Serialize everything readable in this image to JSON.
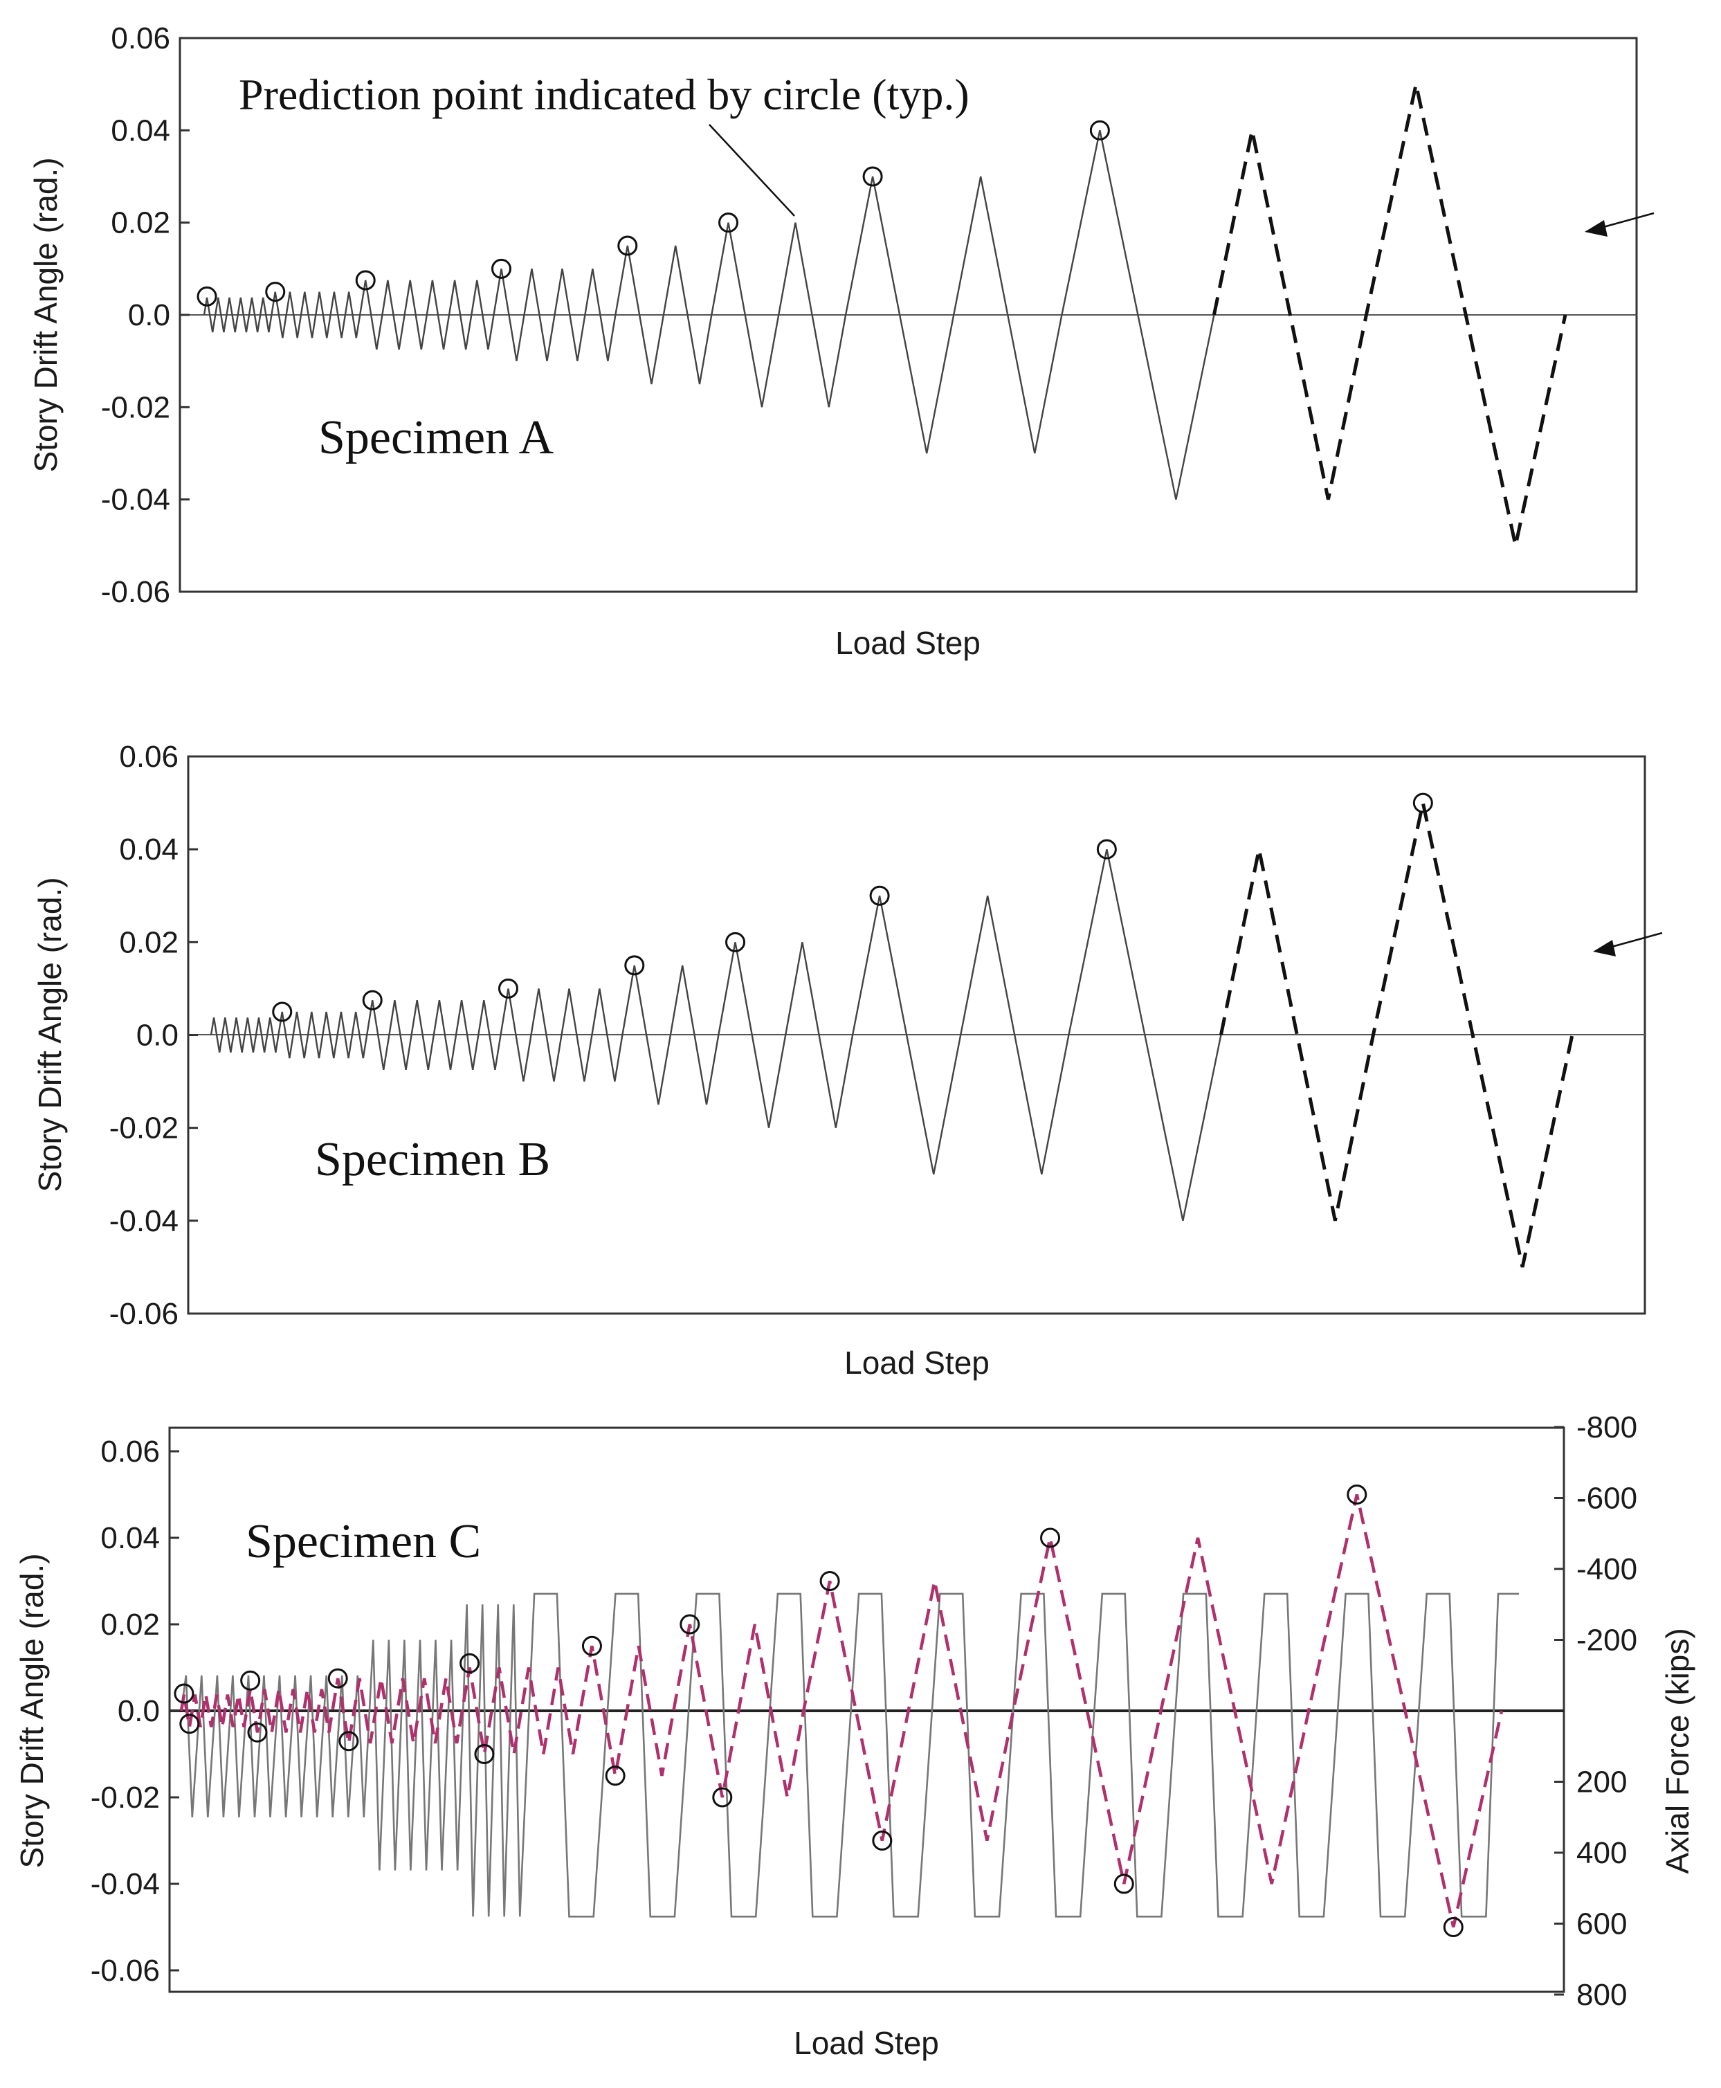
{
  "annotation": "Prediction point indicated by circle (typ.)",
  "chart_data": [
    {
      "type": "line",
      "title": "Specimen A",
      "xlabel": "Load Step",
      "ylabel": "Story Drift Angle (rad.)",
      "ylim": [
        -0.06,
        0.06
      ],
      "yticks": [
        "0.06",
        "0.04",
        "0.02",
        "0.0",
        "-0.02",
        "-0.04",
        "-0.06"
      ],
      "grid": false,
      "series": [
        {
          "style": "solid",
          "cycles": [
            {
              "amplitude": 0.00375,
              "count": 6
            },
            {
              "amplitude": 0.005,
              "count": 6
            },
            {
              "amplitude": 0.0075,
              "count": 6
            },
            {
              "amplitude": 0.01,
              "count": 4
            },
            {
              "amplitude": 0.015,
              "count": 2
            },
            {
              "amplitude": 0.02,
              "count": 2
            },
            {
              "amplitude": 0.03,
              "count": 2
            },
            {
              "amplitude": 0.04,
              "count": 1
            }
          ]
        },
        {
          "style": "dashed",
          "cycles": [
            {
              "amplitude": 0.04,
              "count": 1
            },
            {
              "amplitude": 0.05,
              "count": 1
            }
          ]
        }
      ],
      "prediction_points": [
        {
          "cycle": 1,
          "drift": 0.004
        },
        {
          "cycle": 7,
          "drift": 0.005
        },
        {
          "cycle": 13,
          "drift": 0.0075
        },
        {
          "cycle": 19,
          "drift": 0.01
        },
        {
          "cycle": 23,
          "drift": 0.015
        },
        {
          "cycle": 25,
          "drift": 0.02
        },
        {
          "cycle": 27,
          "drift": 0.03
        },
        {
          "cycle": 29,
          "drift": 0.04
        }
      ]
    },
    {
      "type": "line",
      "title": "Specimen B",
      "xlabel": "Load Step",
      "ylabel": "Story Drift Angle (rad.)",
      "ylim": [
        -0.06,
        0.06
      ],
      "yticks": [
        "0.06",
        "0.04",
        "0.02",
        "0.0",
        "-0.02",
        "-0.04",
        "-0.06"
      ],
      "grid": false,
      "series": [
        {
          "style": "solid",
          "cycles": [
            {
              "amplitude": 0.00375,
              "count": 6
            },
            {
              "amplitude": 0.005,
              "count": 6
            },
            {
              "amplitude": 0.0075,
              "count": 6
            },
            {
              "amplitude": 0.01,
              "count": 4
            },
            {
              "amplitude": 0.015,
              "count": 2
            },
            {
              "amplitude": 0.02,
              "count": 2
            },
            {
              "amplitude": 0.03,
              "count": 2
            },
            {
              "amplitude": 0.04,
              "count": 1
            }
          ]
        },
        {
          "style": "dashed",
          "cycles": [
            {
              "amplitude": 0.04,
              "count": 1
            },
            {
              "amplitude": 0.05,
              "count": 1
            }
          ]
        }
      ],
      "prediction_points": [
        {
          "cycle": 7,
          "drift": 0.005
        },
        {
          "cycle": 13,
          "drift": 0.0075
        },
        {
          "cycle": 19,
          "drift": 0.01
        },
        {
          "cycle": 23,
          "drift": 0.015
        },
        {
          "cycle": 25,
          "drift": 0.02
        },
        {
          "cycle": 27,
          "drift": 0.03
        },
        {
          "cycle": 29,
          "drift": 0.04
        },
        {
          "cycle": 31,
          "drift": 0.05
        }
      ]
    },
    {
      "type": "line",
      "title": "Specimen C",
      "xlabel": "Load Step",
      "ylabel": "Story Drift Angle (rad.)",
      "y2label": "Axial Force (kips)",
      "ylim": [
        -0.065,
        0.065
      ],
      "yticks": [
        "0.06",
        "0.04",
        "0.02",
        "0.0",
        "-0.02",
        "-0.04",
        "-0.06"
      ],
      "y2lim": [
        800,
        -800
      ],
      "y2ticks": [
        "-800",
        "-600",
        "-400",
        "-200",
        "200",
        "400",
        "600",
        "800"
      ],
      "grid": false,
      "drift_cycles": [
        {
          "amplitude": 0.00375,
          "count": 6
        },
        {
          "amplitude": 0.005,
          "count": 6
        },
        {
          "amplitude": 0.0075,
          "count": 6
        },
        {
          "amplitude": 0.01,
          "count": 4
        },
        {
          "amplitude": 0.015,
          "count": 2
        },
        {
          "amplitude": 0.02,
          "count": 2
        },
        {
          "amplitude": 0.03,
          "count": 2
        },
        {
          "amplitude": 0.04,
          "count": 2
        },
        {
          "amplitude": 0.05,
          "count": 1
        }
      ],
      "axial_force_cycles": [
        {
          "tension": -100,
          "compression": 300,
          "count": 6
        },
        {
          "tension": -100,
          "compression": 300,
          "count": 6
        },
        {
          "tension": -200,
          "compression": 450,
          "count": 6
        },
        {
          "tension": -300,
          "compression": 580,
          "count": 4
        },
        {
          "tension": -330,
          "compression": 580,
          "count": 4
        },
        {
          "tension": -330,
          "compression": 580,
          "count": 4
        },
        {
          "tension": -330,
          "compression": 580,
          "count": 4
        }
      ],
      "prediction_points": [
        {
          "cycle": 1,
          "drift": 0.004
        },
        {
          "cycle": 1,
          "drift": -0.003
        },
        {
          "cycle": 7,
          "drift": 0.007
        },
        {
          "cycle": 7,
          "drift": -0.005
        },
        {
          "cycle": 13,
          "drift": 0.0075
        },
        {
          "cycle": 13,
          "drift": -0.007
        },
        {
          "cycle": 19,
          "drift": 0.011
        },
        {
          "cycle": 19,
          "drift": -0.01
        },
        {
          "cycle": 23,
          "drift": 0.015
        },
        {
          "cycle": 23,
          "drift": -0.015
        },
        {
          "cycle": 25,
          "drift": 0.02
        },
        {
          "cycle": 25,
          "drift": -0.02
        },
        {
          "cycle": 27,
          "drift": 0.03
        },
        {
          "cycle": 27,
          "drift": -0.03
        },
        {
          "cycle": 29,
          "drift": 0.04
        },
        {
          "cycle": 29,
          "drift": -0.04
        },
        {
          "cycle": 31,
          "drift": 0.05
        },
        {
          "cycle": 31,
          "drift": -0.05
        }
      ]
    }
  ],
  "colors": {
    "drift_solid": "#444444",
    "drift_dashed": "#111111",
    "drift_specimen_c": "#b0306b",
    "axial_force": "#777777"
  }
}
